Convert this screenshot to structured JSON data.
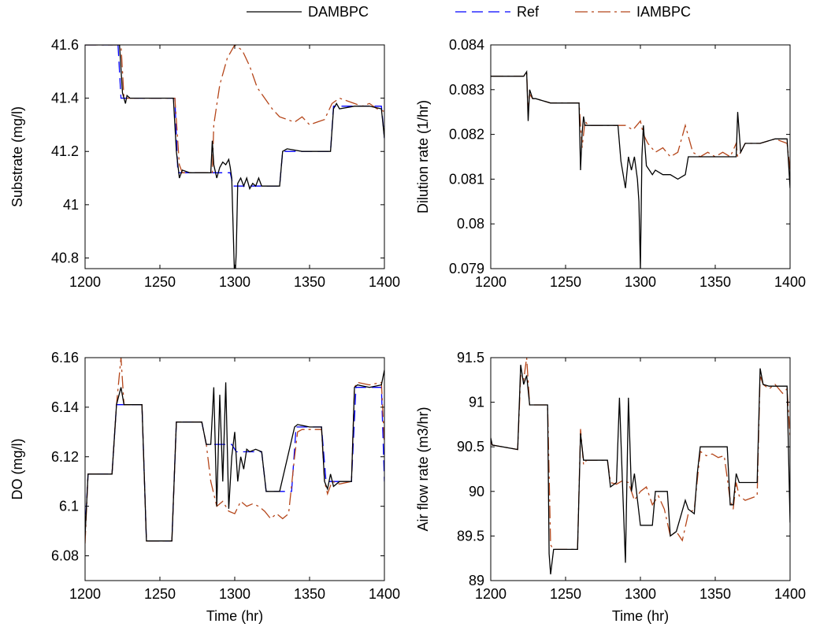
{
  "legend": {
    "placement": "top-center",
    "entries": [
      {
        "label": "DAMBPC",
        "color": "#000000",
        "style": "solid"
      },
      {
        "label": "Ref",
        "color": "#0000ff",
        "style": "dashed"
      },
      {
        "label": "IAMBPC",
        "color": "#b5461a",
        "style": "dashdot"
      }
    ]
  },
  "chart_data": [
    {
      "type": "line",
      "xlabel": "",
      "ylabel": "Substrate (mg/l)",
      "xlim": [
        1200,
        1400
      ],
      "ylim": [
        40.76,
        41.6
      ],
      "xticks": [
        "1200",
        "1250",
        "1300",
        "1350",
        "1400"
      ],
      "yticks": [
        {
          "v": 40.8,
          "label": "40.8"
        },
        {
          "v": 41.0,
          "label": "41"
        },
        {
          "v": 41.2,
          "label": "41.2"
        },
        {
          "v": 41.4,
          "label": "41.4"
        },
        {
          "v": 41.6,
          "label": "41.6"
        }
      ],
      "grid": false,
      "series": [
        {
          "name": "Ref",
          "color": "#0000ff",
          "style": "dashed",
          "x": [
            1200,
            1222,
            1224,
            1260,
            1262,
            1297,
            1299,
            1330,
            1332,
            1364,
            1366,
            1398,
            1400
          ],
          "y": [
            41.6,
            41.6,
            41.4,
            41.4,
            41.12,
            41.12,
            41.07,
            41.07,
            41.2,
            41.2,
            41.37,
            41.37,
            41.25
          ]
        },
        {
          "name": "IAMBPC",
          "color": "#b5461a",
          "style": "dashdot",
          "x": [
            1200,
            1224,
            1226,
            1228,
            1240,
            1260,
            1263,
            1265,
            1285,
            1286,
            1290,
            1295,
            1300,
            1305,
            1310,
            1315,
            1320,
            1325,
            1330,
            1335,
            1340,
            1345,
            1350,
            1355,
            1360,
            1365,
            1370,
            1375,
            1380,
            1385,
            1390,
            1395,
            1400
          ],
          "y": [
            41.6,
            41.6,
            41.4,
            41.4,
            41.4,
            41.4,
            41.15,
            41.12,
            41.12,
            41.3,
            41.45,
            41.55,
            41.6,
            41.58,
            41.52,
            41.44,
            41.4,
            41.36,
            41.33,
            41.32,
            41.31,
            41.33,
            41.3,
            41.31,
            41.32,
            41.38,
            41.4,
            41.39,
            41.38,
            41.37,
            41.38,
            41.36,
            41.35
          ]
        },
        {
          "name": "DAMBPC",
          "color": "#000000",
          "style": "solid",
          "x": [
            1200,
            1223,
            1225,
            1227,
            1228,
            1230,
            1240,
            1259,
            1261,
            1263,
            1265,
            1270,
            1284,
            1285,
            1286,
            1288,
            1290,
            1292,
            1294,
            1296,
            1297,
            1298,
            1299,
            1300,
            1301,
            1302,
            1304,
            1306,
            1308,
            1310,
            1312,
            1314,
            1316,
            1318,
            1320,
            1325,
            1330,
            1332,
            1335,
            1345,
            1364,
            1366,
            1368,
            1370,
            1380,
            1390,
            1398,
            1400
          ],
          "y": [
            41.6,
            41.6,
            41.42,
            41.38,
            41.41,
            41.4,
            41.4,
            41.4,
            41.2,
            41.1,
            41.13,
            41.12,
            41.12,
            41.24,
            41.15,
            41.1,
            41.14,
            41.16,
            41.15,
            41.17,
            41.14,
            41.1,
            40.9,
            40.7,
            40.82,
            41.08,
            41.1,
            41.07,
            41.1,
            41.06,
            41.08,
            41.07,
            41.1,
            41.07,
            41.07,
            41.07,
            41.07,
            41.2,
            41.21,
            41.2,
            41.2,
            41.36,
            41.38,
            41.36,
            41.37,
            41.37,
            41.36,
            41.25
          ]
        }
      ]
    },
    {
      "type": "line",
      "xlabel": "",
      "ylabel": "Dilution rate (1/hr)",
      "xlim": [
        1200,
        1400
      ],
      "ylim": [
        0.079,
        0.084
      ],
      "xticks": [
        "1200",
        "1250",
        "1300",
        "1350",
        "1400"
      ],
      "yticks": [
        {
          "v": 0.079,
          "label": "0.079"
        },
        {
          "v": 0.08,
          "label": "0.08"
        },
        {
          "v": 0.081,
          "label": "0.081"
        },
        {
          "v": 0.082,
          "label": "0.082"
        },
        {
          "v": 0.083,
          "label": "0.083"
        },
        {
          "v": 0.084,
          "label": "0.084"
        }
      ],
      "grid": false,
      "series": [
        {
          "name": "IAMBPC",
          "color": "#b5461a",
          "style": "dashdot",
          "x": [
            1200,
            1222,
            1224,
            1225,
            1226,
            1228,
            1230,
            1240,
            1259,
            1261,
            1263,
            1265,
            1285,
            1287,
            1290,
            1295,
            1300,
            1302,
            1305,
            1310,
            1315,
            1320,
            1325,
            1330,
            1335,
            1340,
            1345,
            1350,
            1355,
            1360,
            1364,
            1365,
            1367,
            1370,
            1380,
            1390,
            1398,
            1400
          ],
          "y": [
            0.0833,
            0.0833,
            0.0834,
            0.0825,
            0.0829,
            0.0828,
            0.0828,
            0.0827,
            0.0827,
            0.0817,
            0.0823,
            0.0822,
            0.0822,
            0.0822,
            0.0822,
            0.0821,
            0.0823,
            0.082,
            0.0818,
            0.0816,
            0.0817,
            0.0815,
            0.0816,
            0.0822,
            0.0816,
            0.0815,
            0.0816,
            0.0815,
            0.0816,
            0.0815,
            0.0818,
            0.0815,
            0.0816,
            0.0818,
            0.0818,
            0.0819,
            0.0818,
            0.0812
          ]
        },
        {
          "name": "DAMBPC",
          "color": "#000000",
          "style": "solid",
          "x": [
            1200,
            1222,
            1224,
            1225,
            1226,
            1228,
            1230,
            1240,
            1259,
            1260,
            1261,
            1262,
            1263,
            1265,
            1285,
            1287,
            1290,
            1292,
            1294,
            1296,
            1298,
            1299,
            1300,
            1301,
            1302,
            1304,
            1306,
            1308,
            1310,
            1315,
            1320,
            1325,
            1330,
            1332,
            1335,
            1345,
            1364,
            1365,
            1367,
            1370,
            1380,
            1390,
            1398,
            1400
          ],
          "y": [
            0.0833,
            0.0833,
            0.0834,
            0.0823,
            0.083,
            0.0828,
            0.0828,
            0.0827,
            0.0827,
            0.0812,
            0.082,
            0.0824,
            0.0822,
            0.0822,
            0.0822,
            0.0814,
            0.0808,
            0.0815,
            0.0812,
            0.0815,
            0.081,
            0.0805,
            0.079,
            0.0815,
            0.0822,
            0.0813,
            0.0812,
            0.0811,
            0.0812,
            0.0811,
            0.0811,
            0.081,
            0.0811,
            0.0815,
            0.0815,
            0.0815,
            0.0815,
            0.0825,
            0.0816,
            0.0818,
            0.0818,
            0.0819,
            0.0819,
            0.0808
          ]
        }
      ]
    },
    {
      "type": "line",
      "xlabel": "Time (hr)",
      "ylabel": "DO (mg/l)",
      "xlim": [
        1200,
        1400
      ],
      "ylim": [
        6.07,
        6.16
      ],
      "xticks": [
        "1200",
        "1250",
        "1300",
        "1350",
        "1400"
      ],
      "yticks": [
        {
          "v": 6.08,
          "label": "6.08"
        },
        {
          "v": 6.1,
          "label": "6.1"
        },
        {
          "v": 6.12,
          "label": "6.12"
        },
        {
          "v": 6.14,
          "label": "6.14"
        },
        {
          "v": 6.16,
          "label": "6.16"
        }
      ],
      "grid": false,
      "series": [
        {
          "name": "Ref",
          "color": "#0000ff",
          "style": "dashed",
          "x": [
            1200,
            1202,
            1218,
            1221,
            1238,
            1241,
            1258,
            1261,
            1278,
            1281,
            1298,
            1301,
            1318,
            1321,
            1338,
            1341,
            1358,
            1361,
            1378,
            1381,
            1398,
            1400
          ],
          "y": [
            6.09,
            6.113,
            6.113,
            6.141,
            6.141,
            6.086,
            6.086,
            6.134,
            6.134,
            6.125,
            6.125,
            6.122,
            6.122,
            6.106,
            6.106,
            6.132,
            6.132,
            6.11,
            6.11,
            6.148,
            6.148,
            6.11
          ]
        },
        {
          "name": "IAMBPC",
          "color": "#b5461a",
          "style": "dashdot",
          "x": [
            1200,
            1202,
            1218,
            1221,
            1224,
            1226,
            1238,
            1241,
            1258,
            1261,
            1278,
            1281,
            1284,
            1288,
            1292,
            1296,
            1300,
            1304,
            1308,
            1312,
            1316,
            1320,
            1324,
            1328,
            1332,
            1336,
            1340,
            1342,
            1345,
            1350,
            1358,
            1360,
            1362,
            1365,
            1370,
            1378,
            1380,
            1382,
            1390,
            1398,
            1400
          ],
          "y": [
            6.085,
            6.113,
            6.113,
            6.141,
            6.16,
            6.141,
            6.141,
            6.086,
            6.086,
            6.134,
            6.134,
            6.125,
            6.11,
            6.1,
            6.102,
            6.098,
            6.097,
            6.102,
            6.1,
            6.101,
            6.1,
            6.098,
            6.095,
            6.097,
            6.095,
            6.097,
            6.12,
            6.13,
            6.131,
            6.131,
            6.131,
            6.11,
            6.105,
            6.11,
            6.109,
            6.11,
            6.148,
            6.15,
            6.149,
            6.15,
            6.125
          ]
        },
        {
          "name": "DAMBPC",
          "color": "#000000",
          "style": "solid",
          "x": [
            1200,
            1202,
            1218,
            1221,
            1224,
            1226,
            1238,
            1241,
            1258,
            1261,
            1278,
            1281,
            1284,
            1286,
            1288,
            1290,
            1292,
            1294,
            1296,
            1298,
            1300,
            1302,
            1304,
            1306,
            1308,
            1310,
            1314,
            1318,
            1321,
            1330,
            1340,
            1342,
            1350,
            1358,
            1360,
            1362,
            1364,
            1366,
            1370,
            1378,
            1380,
            1382,
            1390,
            1398,
            1400
          ],
          "y": [
            6.088,
            6.113,
            6.113,
            6.141,
            6.148,
            6.141,
            6.141,
            6.086,
            6.086,
            6.134,
            6.134,
            6.125,
            6.125,
            6.148,
            6.1,
            6.145,
            6.11,
            6.15,
            6.099,
            6.12,
            6.13,
            6.11,
            6.12,
            6.115,
            6.123,
            6.122,
            6.123,
            6.122,
            6.106,
            6.106,
            6.132,
            6.133,
            6.132,
            6.132,
            6.11,
            6.107,
            6.113,
            6.108,
            6.11,
            6.11,
            6.148,
            6.149,
            6.148,
            6.149,
            6.155
          ]
        }
      ]
    },
    {
      "type": "line",
      "xlabel": "Time (hr)",
      "ylabel": "Air flow rate (m3/hr)",
      "xlim": [
        1200,
        1400
      ],
      "ylim": [
        89.0,
        91.5
      ],
      "xticks": [
        "1200",
        "1250",
        "1300",
        "1350",
        "1400"
      ],
      "yticks": [
        {
          "v": 89.0,
          "label": "89"
        },
        {
          "v": 89.5,
          "label": "89.5"
        },
        {
          "v": 90.0,
          "label": "90"
        },
        {
          "v": 90.5,
          "label": "90.5"
        },
        {
          "v": 91.0,
          "label": "91"
        },
        {
          "v": 91.5,
          "label": "91.5"
        }
      ],
      "grid": false,
      "series": [
        {
          "name": "IAMBPC",
          "color": "#b5461a",
          "style": "dashdot",
          "x": [
            1200,
            1201,
            1218,
            1220,
            1222,
            1224,
            1226,
            1238,
            1240,
            1242,
            1258,
            1260,
            1262,
            1264,
            1278,
            1280,
            1284,
            1288,
            1292,
            1296,
            1300,
            1304,
            1308,
            1312,
            1316,
            1320,
            1324,
            1328,
            1332,
            1336,
            1340,
            1344,
            1348,
            1352,
            1356,
            1360,
            1362,
            1364,
            1366,
            1370,
            1378,
            1380,
            1382,
            1386,
            1390,
            1395,
            1398,
            1400
          ],
          "y": [
            90.55,
            90.52,
            90.47,
            91.3,
            91.25,
            91.5,
            90.97,
            90.97,
            89.4,
            89.35,
            89.35,
            90.7,
            90.3,
            90.35,
            90.35,
            90.1,
            90.08,
            90.12,
            90.1,
            89.9,
            90.0,
            90.05,
            89.85,
            89.95,
            89.8,
            89.5,
            89.55,
            89.45,
            89.75,
            89.8,
            90.45,
            90.4,
            90.42,
            90.38,
            90.4,
            89.9,
            89.8,
            90.1,
            89.95,
            89.9,
            89.95,
            91.3,
            91.2,
            91.15,
            91.2,
            91.1,
            91.15,
            90.6
          ]
        },
        {
          "name": "DAMBPC",
          "color": "#000000",
          "style": "solid",
          "x": [
            1200,
            1201,
            1218,
            1220,
            1222,
            1224,
            1226,
            1238,
            1239,
            1240,
            1242,
            1258,
            1260,
            1262,
            1264,
            1278,
            1280,
            1284,
            1286,
            1288,
            1290,
            1292,
            1294,
            1296,
            1300,
            1308,
            1310,
            1312,
            1318,
            1320,
            1324,
            1330,
            1332,
            1336,
            1338,
            1340,
            1342,
            1350,
            1358,
            1360,
            1362,
            1364,
            1366,
            1370,
            1378,
            1380,
            1382,
            1386,
            1398,
            1400
          ],
          "y": [
            90.6,
            90.52,
            90.47,
            91.42,
            91.2,
            91.3,
            90.97,
            90.97,
            89.3,
            89.07,
            89.35,
            89.35,
            90.65,
            90.35,
            90.35,
            90.35,
            90.05,
            90.1,
            91.05,
            90.1,
            89.2,
            91.05,
            90.0,
            90.2,
            89.62,
            89.62,
            90.0,
            90.0,
            90.0,
            89.5,
            89.55,
            89.9,
            89.8,
            89.75,
            90.2,
            90.5,
            90.5,
            90.5,
            90.5,
            89.85,
            89.85,
            90.2,
            90.1,
            90.1,
            90.1,
            91.38,
            91.2,
            91.18,
            91.18,
            89.65
          ]
        }
      ]
    }
  ]
}
